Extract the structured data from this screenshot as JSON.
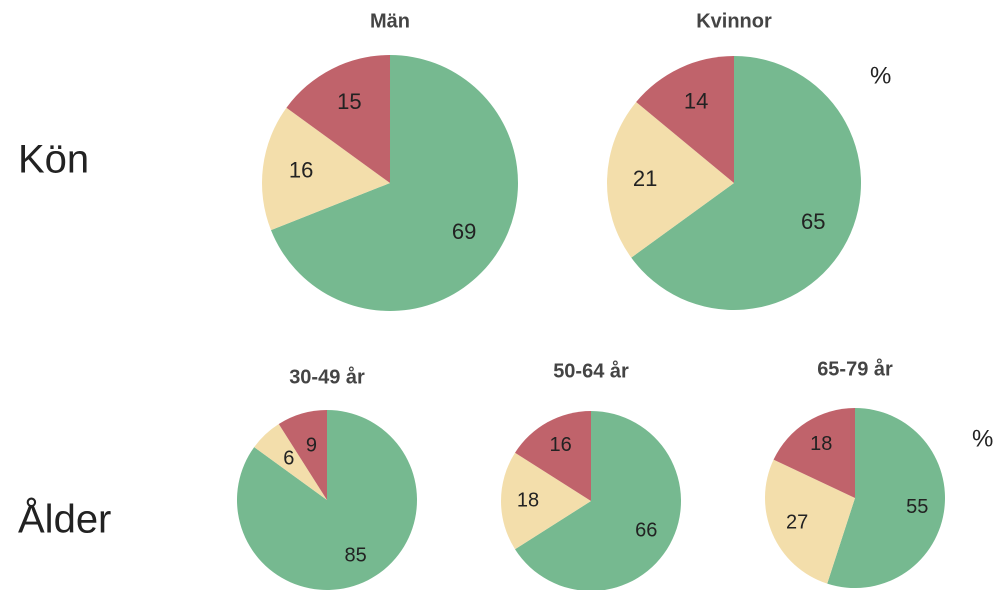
{
  "row_labels": [
    "Kön",
    "Ålder"
  ],
  "unit_labels": [
    "%",
    "%"
  ],
  "chart_data": [
    {
      "type": "pie",
      "title": "Män",
      "values": [
        69,
        16,
        15
      ],
      "colors": [
        "#76b990",
        "#f3deab",
        "#c0636b"
      ]
    },
    {
      "type": "pie",
      "title": "Kvinnor",
      "values": [
        65,
        21,
        14
      ],
      "colors": [
        "#76b990",
        "#f3deab",
        "#c0636b"
      ]
    },
    {
      "type": "pie",
      "title": "30-49 år",
      "values": [
        85,
        6,
        9
      ],
      "colors": [
        "#76b990",
        "#f3deab",
        "#c0636b"
      ]
    },
    {
      "type": "pie",
      "title": "50-64 år",
      "values": [
        66,
        18,
        16
      ],
      "colors": [
        "#76b990",
        "#f3deab",
        "#c0636b"
      ]
    },
    {
      "type": "pie",
      "title": "65-79 år",
      "values": [
        55,
        27,
        18
      ],
      "colors": [
        "#76b990",
        "#f3deab",
        "#c0636b"
      ]
    }
  ]
}
